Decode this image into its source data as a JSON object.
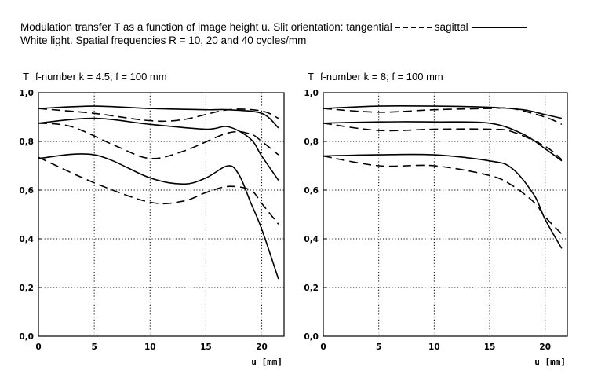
{
  "header": {
    "line1_prefix": "Modulation transfer T as a function of image height u. Slit orientation: tangential",
    "line1_sagittal": "sagittal",
    "line2": "White light. Spatial frequencies R = 10, 20 and 40 cycles/mm"
  },
  "chart_data": [
    {
      "type": "line",
      "title": "f-number k = 4.5; f = 100 mm",
      "ylabel": "T",
      "xlabel": "u [mm]",
      "xlim": [
        0,
        22
      ],
      "ylim": [
        0,
        1.0
      ],
      "x_ticks": [
        0,
        5,
        10,
        15,
        20
      ],
      "y_ticks": [
        0.0,
        0.2,
        0.4,
        0.6,
        0.8,
        1.0
      ],
      "y_tick_labels": [
        "0,0",
        "0,2",
        "0,4",
        "0,6",
        "0,8",
        "1,0"
      ],
      "x_tick_labels": [
        "0",
        "5",
        "10",
        "15",
        "20"
      ],
      "grid": true,
      "series": [
        {
          "style": "solid",
          "x": [
            0,
            5,
            10,
            15,
            17,
            20,
            21.5
          ],
          "y": [
            0.935,
            0.945,
            0.935,
            0.93,
            0.93,
            0.915,
            0.855
          ]
        },
        {
          "style": "dashed",
          "x": [
            0,
            5,
            10,
            13,
            17,
            20,
            21.5
          ],
          "y": [
            0.935,
            0.915,
            0.885,
            0.89,
            0.93,
            0.925,
            0.895
          ]
        },
        {
          "style": "solid",
          "x": [
            0,
            5,
            10,
            15,
            17,
            19,
            20,
            21.5
          ],
          "y": [
            0.875,
            0.895,
            0.87,
            0.85,
            0.86,
            0.81,
            0.74,
            0.64
          ]
        },
        {
          "style": "dashed",
          "x": [
            0,
            3,
            7,
            10,
            13,
            17,
            19,
            20,
            21.5
          ],
          "y": [
            0.875,
            0.86,
            0.78,
            0.73,
            0.76,
            0.835,
            0.83,
            0.8,
            0.745
          ]
        },
        {
          "style": "solid",
          "x": [
            0,
            5,
            10,
            13,
            15,
            17,
            18,
            19,
            20,
            21.5
          ],
          "y": [
            0.73,
            0.745,
            0.65,
            0.625,
            0.65,
            0.7,
            0.66,
            0.55,
            0.44,
            0.235
          ]
        },
        {
          "style": "dashed",
          "x": [
            0,
            5,
            10,
            13,
            15,
            17,
            19,
            20,
            21.5
          ],
          "y": [
            0.735,
            0.63,
            0.55,
            0.555,
            0.59,
            0.615,
            0.6,
            0.545,
            0.46
          ]
        }
      ]
    },
    {
      "type": "line",
      "title": "f-number k = 8; f = 100 mm",
      "ylabel": "T",
      "xlabel": "u [mm]",
      "xlim": [
        0,
        22
      ],
      "ylim": [
        0,
        1.0
      ],
      "x_ticks": [
        0,
        5,
        10,
        15,
        20
      ],
      "y_ticks": [
        0.0,
        0.2,
        0.4,
        0.6,
        0.8,
        1.0
      ],
      "y_tick_labels": [
        "0,0",
        "0,2",
        "0,4",
        "0,6",
        "0,8",
        "1,0"
      ],
      "x_tick_labels": [
        "0",
        "5",
        "10",
        "15",
        "20"
      ],
      "grid": true,
      "series": [
        {
          "style": "solid",
          "x": [
            0,
            5,
            10,
            15,
            18,
            20,
            21.5
          ],
          "y": [
            0.935,
            0.945,
            0.945,
            0.94,
            0.93,
            0.91,
            0.895
          ]
        },
        {
          "style": "dashed",
          "x": [
            0,
            5,
            10,
            15,
            17,
            20,
            21.5
          ],
          "y": [
            0.935,
            0.92,
            0.93,
            0.935,
            0.935,
            0.9,
            0.87
          ]
        },
        {
          "style": "solid",
          "x": [
            0,
            5,
            10,
            15,
            18,
            20,
            21.5
          ],
          "y": [
            0.875,
            0.88,
            0.88,
            0.875,
            0.83,
            0.77,
            0.72
          ]
        },
        {
          "style": "dashed",
          "x": [
            0,
            5,
            10,
            15,
            17,
            20,
            21.5
          ],
          "y": [
            0.875,
            0.845,
            0.85,
            0.85,
            0.84,
            0.78,
            0.725
          ]
        },
        {
          "style": "solid",
          "x": [
            0,
            5,
            10,
            15,
            17,
            19,
            20,
            21.5
          ],
          "y": [
            0.74,
            0.745,
            0.745,
            0.72,
            0.69,
            0.58,
            0.48,
            0.36
          ]
        },
        {
          "style": "dashed",
          "x": [
            0,
            5,
            10,
            15,
            17,
            19,
            20,
            21.5
          ],
          "y": [
            0.74,
            0.7,
            0.7,
            0.66,
            0.62,
            0.55,
            0.49,
            0.42
          ]
        }
      ]
    }
  ]
}
